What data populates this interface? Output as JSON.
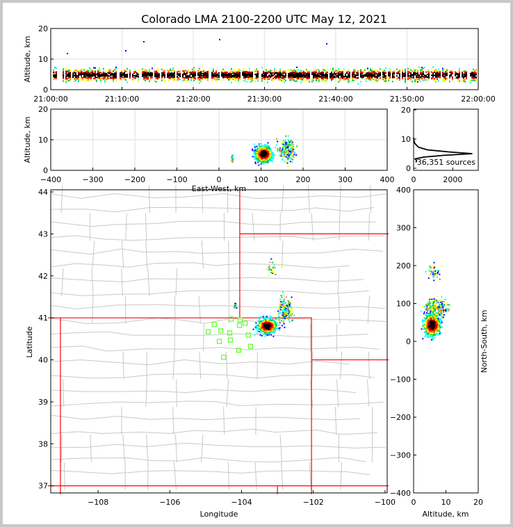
{
  "chart_data": [
    {
      "id": "time-height",
      "type": "heatmap",
      "title": "Colorado LMA 2100-2200 UTC May 12, 2021",
      "ylabel": "Altitude, km",
      "xlabel": "",
      "xlim": [
        "21:00:00",
        "22:00:00"
      ],
      "ylim": [
        0,
        20
      ],
      "xticks": [
        "21:00:00",
        "21:10:00",
        "21:20:00",
        "21:30:00",
        "21:40:00",
        "21:50:00",
        "22:00:00"
      ],
      "yticks": [
        "0",
        "10",
        "20"
      ],
      "grid": true,
      "density_center_alt_km": 5,
      "density_range_alt_km": [
        2,
        10
      ]
    },
    {
      "id": "ew-altitude",
      "type": "heatmap",
      "xlabel": "East-West, km",
      "ylabel": "Altitude, km",
      "xlim": [
        -400,
        400
      ],
      "ylim": [
        0,
        20
      ],
      "xticks": [
        "−400",
        "−300",
        "−200",
        "−100",
        "0",
        "100",
        "200",
        "300",
        "400"
      ],
      "yticks": [
        "0",
        "10",
        "20"
      ],
      "clusters": [
        {
          "x": 105,
          "y": 5.5,
          "sx": 14,
          "sy": 1.8,
          "n": 900
        },
        {
          "x": 160,
          "y": 7,
          "sx": 14,
          "sy": 2.5,
          "n": 260
        },
        {
          "x": 30,
          "y": 4,
          "sx": 2,
          "sy": 1,
          "n": 30
        }
      ]
    },
    {
      "id": "altitude-histogram",
      "type": "line",
      "xlim": [
        0,
        3300
      ],
      "ylim": [
        0,
        20
      ],
      "xticks": [
        "0",
        "2000"
      ],
      "yticks": [
        "0",
        "10",
        "20"
      ],
      "annotation": "36,351 sources",
      "x": [
        120,
        150,
        80,
        500,
        1500,
        3000,
        1800,
        700,
        250,
        60,
        10,
        0
      ],
      "y": [
        2,
        2.7,
        3.2,
        3.8,
        4.4,
        5.0,
        5.6,
        6.3,
        7.2,
        8.5,
        9.8,
        10.5
      ]
    },
    {
      "id": "plan-view",
      "type": "heatmap",
      "xlabel": "Longitude",
      "ylabel": "Latitude",
      "xlim": [
        -109.32,
        -99.94
      ],
      "ylim": [
        36.83,
        44.05
      ],
      "xticks": [
        {
          "v": -108,
          "t": "−108"
        },
        {
          "v": -106,
          "t": "−106"
        },
        {
          "v": -104,
          "t": "−104"
        },
        {
          "v": -102,
          "t": "−102"
        },
        {
          "v": -100,
          "t": "−100"
        }
      ],
      "yticks": [
        {
          "v": 37,
          "t": "37"
        },
        {
          "v": 38,
          "t": "38"
        },
        {
          "v": 39,
          "t": "39"
        },
        {
          "v": 40,
          "t": "40"
        },
        {
          "v": 41,
          "t": "41"
        },
        {
          "v": 42,
          "t": "42"
        },
        {
          "v": 43,
          "t": "43"
        },
        {
          "v": 44,
          "t": "44"
        }
      ],
      "clusters": [
        {
          "x": -103.3,
          "y": 40.82,
          "sx": 0.18,
          "sy": 0.12,
          "n": 700
        },
        {
          "x": -102.8,
          "y": 41.2,
          "sx": 0.15,
          "sy": 0.25,
          "n": 180
        },
        {
          "x": -103.2,
          "y": 42.2,
          "sx": 0.12,
          "sy": 0.12,
          "n": 25
        },
        {
          "x": -104.2,
          "y": 41.3,
          "sx": 0.03,
          "sy": 0.05,
          "n": 15
        }
      ],
      "stations": [
        [
          -104.93,
          40.67
        ],
        [
          -104.76,
          40.84
        ],
        [
          -104.58,
          40.69
        ],
        [
          -104.62,
          40.44
        ],
        [
          -104.33,
          40.64
        ],
        [
          -104.31,
          40.47
        ],
        [
          -104.29,
          40.97
        ],
        [
          -104.06,
          40.82
        ],
        [
          -104.04,
          40.95
        ],
        [
          -103.9,
          40.87
        ],
        [
          -103.81,
          40.59
        ],
        [
          -103.75,
          40.32
        ],
        [
          -104.08,
          40.23
        ],
        [
          -104.5,
          40.06
        ]
      ],
      "station_color": "#66ff33",
      "state_border_color": "#ff0000",
      "county_border_color": "#c8c8c8"
    },
    {
      "id": "altitude-ns",
      "type": "heatmap",
      "xlabel": "Altitude, km",
      "ylabel": "North-South, km",
      "xlim": [
        0,
        20
      ],
      "ylim": [
        -400,
        400
      ],
      "xticks": [
        "0",
        "10",
        "20"
      ],
      "yticks": [
        "400",
        "300",
        "200",
        "100",
        "0",
        "−100",
        "−200",
        "−300",
        "−400"
      ],
      "clusters": [
        {
          "x": 5.5,
          "y": 45,
          "sx": 1.8,
          "sy": 20,
          "n": 700
        },
        {
          "x": 7,
          "y": 90,
          "sx": 2.5,
          "sy": 18,
          "n": 250
        },
        {
          "x": 6,
          "y": 185,
          "sx": 2,
          "sy": 15,
          "n": 40
        }
      ]
    }
  ],
  "colormap": [
    "#0000ff",
    "#00ffff",
    "#00cc44",
    "#ffff00",
    "#ff9900",
    "#ff0000",
    "#aa0000",
    "#000000"
  ]
}
